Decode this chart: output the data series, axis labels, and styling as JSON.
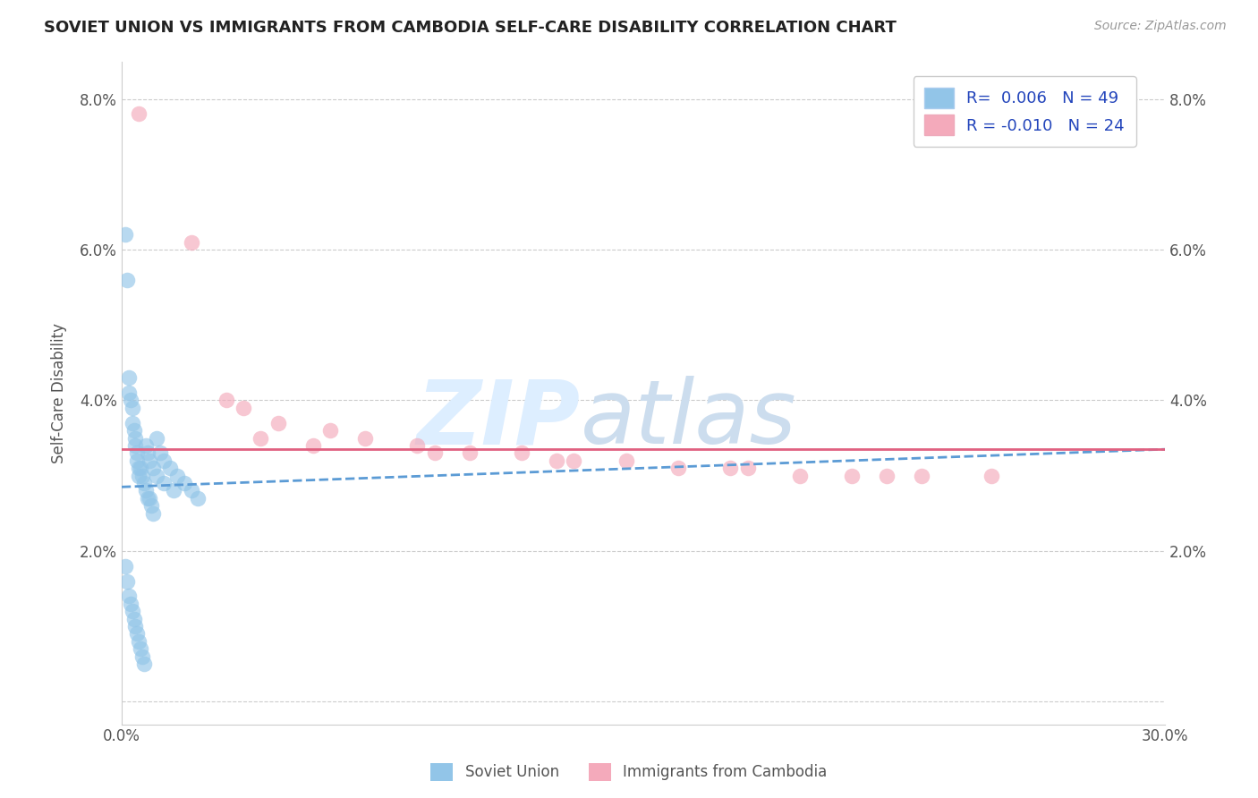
{
  "title": "SOVIET UNION VS IMMIGRANTS FROM CAMBODIA SELF-CARE DISABILITY CORRELATION CHART",
  "source": "Source: ZipAtlas.com",
  "ylabel": "Self-Care Disability",
  "xlim": [
    0.0,
    30.0
  ],
  "ylim": [
    -0.3,
    8.5
  ],
  "legend1_label": "Soviet Union",
  "legend2_label": "Immigrants from Cambodia",
  "r1": 0.006,
  "n1": 49,
  "r2": -0.01,
  "n2": 24,
  "blue_color": "#92C5E8",
  "pink_color": "#F4AABB",
  "blue_line_color": "#5B9BD5",
  "pink_line_color": "#E06080",
  "blue_scatter_x": [
    0.1,
    0.15,
    0.2,
    0.2,
    0.25,
    0.3,
    0.3,
    0.35,
    0.4,
    0.4,
    0.45,
    0.45,
    0.5,
    0.5,
    0.55,
    0.6,
    0.65,
    0.7,
    0.75,
    0.8,
    0.85,
    0.9,
    1.0,
    1.1,
    1.2,
    1.4,
    1.6,
    1.8,
    2.0,
    2.2,
    0.1,
    0.15,
    0.2,
    0.25,
    0.3,
    0.35,
    0.4,
    0.45,
    0.5,
    0.55,
    0.6,
    0.65,
    0.7,
    0.75,
    0.8,
    0.9,
    1.0,
    1.2,
    1.5
  ],
  "blue_scatter_y": [
    6.2,
    5.6,
    4.3,
    4.1,
    4.0,
    3.9,
    3.7,
    3.6,
    3.5,
    3.4,
    3.3,
    3.2,
    3.1,
    3.0,
    3.1,
    3.0,
    2.9,
    2.8,
    2.7,
    2.7,
    2.6,
    2.5,
    3.5,
    3.3,
    3.2,
    3.1,
    3.0,
    2.9,
    2.8,
    2.7,
    1.8,
    1.6,
    1.4,
    1.3,
    1.2,
    1.1,
    1.0,
    0.9,
    0.8,
    0.7,
    0.6,
    0.5,
    3.4,
    3.3,
    3.2,
    3.1,
    3.0,
    2.9,
    2.8
  ],
  "pink_scatter_x": [
    0.5,
    2.0,
    3.0,
    3.5,
    4.5,
    6.0,
    7.0,
    8.5,
    10.0,
    11.5,
    13.0,
    14.5,
    16.0,
    18.0,
    19.5,
    21.0,
    23.0,
    25.0,
    4.0,
    5.5,
    9.0,
    12.5,
    17.5,
    22.0
  ],
  "pink_scatter_y": [
    7.8,
    6.1,
    4.0,
    3.9,
    3.7,
    3.6,
    3.5,
    3.4,
    3.3,
    3.3,
    3.2,
    3.2,
    3.1,
    3.1,
    3.0,
    3.0,
    3.0,
    3.0,
    3.5,
    3.4,
    3.3,
    3.2,
    3.1,
    3.0
  ],
  "blue_trend_start_y": 2.85,
  "blue_trend_end_y": 3.35,
  "pink_trend_start_y": 3.35,
  "pink_trend_end_y": 3.35
}
